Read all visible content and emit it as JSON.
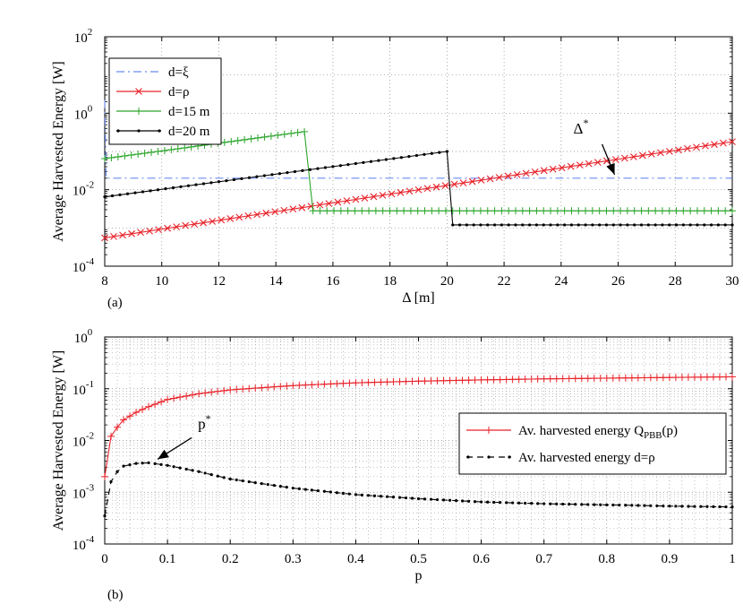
{
  "chart_data": [
    {
      "panel": "(a)",
      "type": "line",
      "xscale": "linear",
      "yscale": "log",
      "xlabel": "Δ [m]",
      "ylabel": "Average Harvested Energy [W]",
      "xlim": [
        8,
        30
      ],
      "ylim_exp": [
        -4,
        2
      ],
      "xticks": [
        "8",
        "10",
        "12",
        "14",
        "16",
        "18",
        "20",
        "22",
        "24",
        "26",
        "28",
        "30"
      ],
      "xtick_values": [
        8,
        10,
        12,
        14,
        16,
        18,
        20,
        22,
        24,
        26,
        28,
        30
      ],
      "yticks": [
        {
          "base": "10",
          "exp": "-4",
          "value": -4
        },
        {
          "base": "10",
          "exp": "-2",
          "value": -2
        },
        {
          "base": "10",
          "exp": "0",
          "value": 0
        },
        {
          "base": "10",
          "exp": "2",
          "value": 2
        }
      ],
      "grid": true,
      "legend_position": "top-left",
      "series": [
        {
          "name": "d=ξ",
          "color": "#6b8cf5",
          "style": "dashdot",
          "marker": "none",
          "points": [
            [
              8,
              2.2
            ],
            [
              8.05,
              0.02
            ],
            [
              30,
              0.02
            ]
          ]
        },
        {
          "name": "d=ρ",
          "color": "#e8232a",
          "style": "solid",
          "marker": "x",
          "start": [
            8,
            0.00055
          ],
          "end": [
            30,
            0.18
          ],
          "n": 71
        },
        {
          "name": "d=15 m",
          "color": "#2aa52a",
          "style": "solid",
          "marker": "plus",
          "segments": [
            {
              "start": [
                8,
                0.065
              ],
              "end": [
                15,
                0.33
              ],
              "n": 31
            },
            {
              "start": [
                15.3,
                0.0028
              ],
              "end": [
                30,
                0.0028
              ],
              "n": 61
            }
          ],
          "drop": [
            [
              15,
              0.33
            ],
            [
              15.3,
              0.0028
            ]
          ]
        },
        {
          "name": "d=20 m",
          "color": "#000000",
          "style": "solid",
          "marker": "dot",
          "segments": [
            {
              "start": [
                8,
                0.0065
              ],
              "end": [
                20,
                0.1
              ],
              "n": 46
            },
            {
              "start": [
                20.2,
                0.0012
              ],
              "end": [
                30,
                0.0012
              ],
              "n": 41
            }
          ],
          "drop": [
            [
              20,
              0.1
            ],
            [
              20.2,
              0.0012
            ]
          ]
        }
      ],
      "annotation": {
        "text": "Δ",
        "sup": "*",
        "target": [
          26,
          0.02
        ]
      }
    },
    {
      "panel": "(b)",
      "type": "line",
      "xscale": "linear",
      "yscale": "log",
      "xlabel": "p",
      "ylabel": "Average Harvested Energy [W]",
      "xlim": [
        0,
        1
      ],
      "ylim_exp": [
        -4,
        0
      ],
      "xticks": [
        "0",
        "0.1",
        "0.2",
        "0.3",
        "0.4",
        "0.5",
        "0.6",
        "0.7",
        "0.8",
        "0.9",
        "1"
      ],
      "xtick_values": [
        0,
        0.1,
        0.2,
        0.3,
        0.4,
        0.5,
        0.6,
        0.7,
        0.8,
        0.9,
        1
      ],
      "yticks": [
        {
          "base": "10",
          "exp": "-4",
          "value": -4
        },
        {
          "base": "10",
          "exp": "-3",
          "value": -3
        },
        {
          "base": "10",
          "exp": "-2",
          "value": -2
        },
        {
          "base": "10",
          "exp": "-1",
          "value": -1
        },
        {
          "base": "10",
          "exp": "0",
          "value": 0
        }
      ],
      "grid": true,
      "legend_position": "right",
      "series": [
        {
          "name": "Av. harvested energy Q",
          "name_sub": "PBB",
          "name_tail": "(p)",
          "color": "#e8232a",
          "style": "solid",
          "marker": "plus",
          "points": [
            [
              0,
              0.002
            ],
            [
              0.005,
              0.006
            ],
            [
              0.01,
              0.012
            ],
            [
              0.02,
              0.018
            ],
            [
              0.03,
              0.025
            ],
            [
              0.05,
              0.035
            ],
            [
              0.07,
              0.045
            ],
            [
              0.1,
              0.062
            ],
            [
              0.15,
              0.08
            ],
            [
              0.2,
              0.095
            ],
            [
              0.3,
              0.115
            ],
            [
              0.4,
              0.13
            ],
            [
              0.5,
              0.14
            ],
            [
              0.6,
              0.148
            ],
            [
              0.7,
              0.155
            ],
            [
              0.8,
              0.16
            ],
            [
              0.9,
              0.165
            ],
            [
              1.0,
              0.17
            ]
          ]
        },
        {
          "name": "Av. harvested energy d=ρ",
          "color": "#000000",
          "style": "dashed",
          "marker": "dot",
          "points": [
            [
              0,
              0.00035
            ],
            [
              0.005,
              0.0018
            ],
            [
              0.01,
              0.0016
            ],
            [
              0.02,
              0.0025
            ],
            [
              0.03,
              0.0032
            ],
            [
              0.05,
              0.0036
            ],
            [
              0.07,
              0.0037
            ],
            [
              0.1,
              0.0033
            ],
            [
              0.15,
              0.0025
            ],
            [
              0.2,
              0.0018
            ],
            [
              0.3,
              0.0012
            ],
            [
              0.4,
              0.0009
            ],
            [
              0.5,
              0.00075
            ],
            [
              0.6,
              0.00065
            ],
            [
              0.7,
              0.0006
            ],
            [
              0.8,
              0.00057
            ],
            [
              0.9,
              0.00054
            ],
            [
              1.0,
              0.00052
            ]
          ]
        }
      ],
      "annotation": {
        "text": "p",
        "sup": "*",
        "target": [
          0.07,
          0.0037
        ]
      }
    }
  ]
}
